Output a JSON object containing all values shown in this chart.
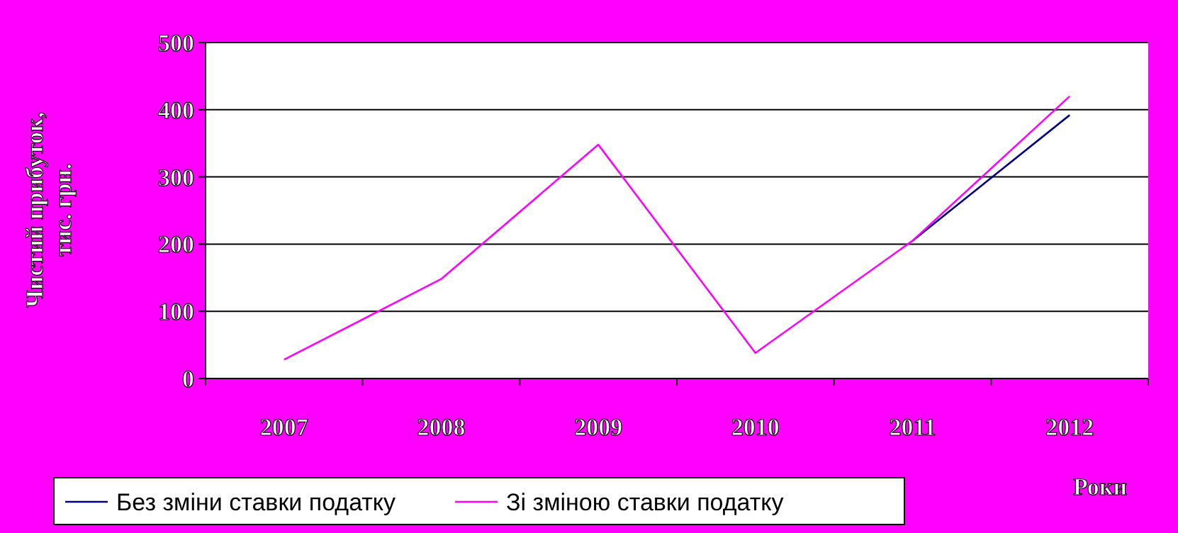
{
  "chart_data": {
    "type": "line",
    "xlabel": "Роки",
    "ylabel": "Чистий прибуток, тис. грн.",
    "categories": [
      "2007",
      "2008",
      "2009",
      "2010",
      "2011",
      "2012"
    ],
    "series": [
      {
        "name": "Без зміни ставки податку",
        "color": "#000080",
        "values": [
          null,
          null,
          null,
          null,
          205,
          392
        ]
      },
      {
        "name": "Зі зміною ставки податку",
        "color": "#ff00ff",
        "values": [
          28,
          148,
          348,
          38,
          205,
          420
        ]
      }
    ],
    "ylim": [
      0,
      500
    ],
    "yticks": [
      0,
      100,
      200,
      300,
      400,
      500
    ],
    "grid": "y",
    "legend": "bottom",
    "marker": "none",
    "line_style": "solid"
  }
}
